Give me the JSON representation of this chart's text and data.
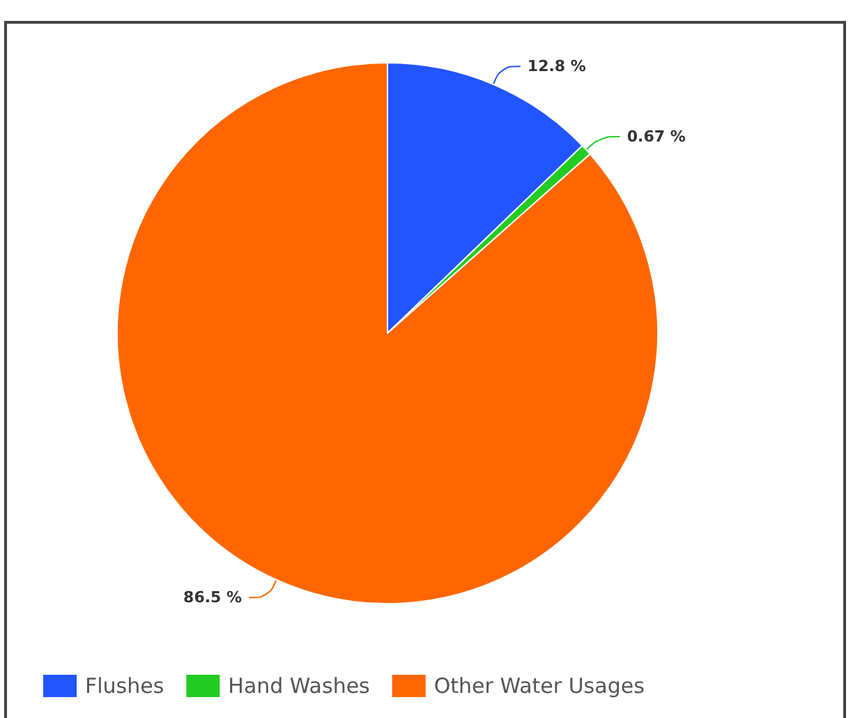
{
  "chart_data": {
    "type": "pie",
    "categories": [
      "Flushes",
      "Hand Washes",
      "Other Water Usages"
    ],
    "values": [
      12.8,
      0.67,
      86.5
    ],
    "value_labels": [
      "12.8 %",
      "0.67 %",
      "86.5 %"
    ],
    "colors": [
      "#2255ff",
      "#22cc22",
      "#ff6600"
    ],
    "legend": "bottom left"
  }
}
